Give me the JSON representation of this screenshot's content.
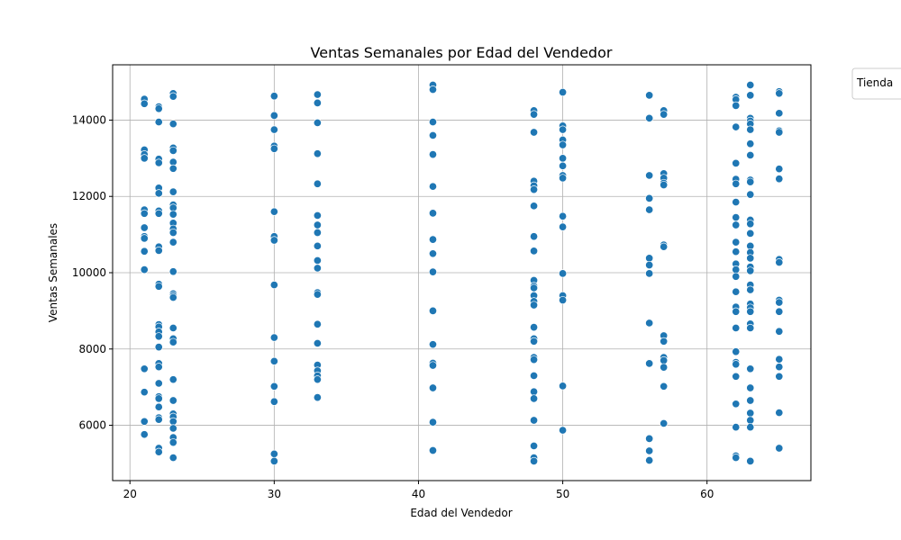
{
  "chart_data": {
    "type": "scatter",
    "title": "Ventas Semanales por Edad del Vendedor",
    "xlabel": "Edad del Vendedor",
    "ylabel": "Ventas Semanales",
    "xlim": [
      18.8,
      67.2
    ],
    "ylim": [
      4550,
      15450
    ],
    "xticks": [
      20,
      30,
      40,
      50,
      60
    ],
    "yticks": [
      6000,
      8000,
      10000,
      12000,
      14000
    ],
    "grid": true,
    "marker_color": "#1f77b4",
    "legend": {
      "title": "Tienda",
      "placement": "outside-top-right"
    },
    "points": [
      [
        21,
        14550
      ],
      [
        21,
        14430
      ],
      [
        21,
        13220
      ],
      [
        21,
        13100
      ],
      [
        21,
        13000
      ],
      [
        21,
        11650
      ],
      [
        21,
        11550
      ],
      [
        21,
        11180
      ],
      [
        21,
        10950
      ],
      [
        21,
        10900
      ],
      [
        21,
        10560
      ],
      [
        21,
        10080
      ],
      [
        21,
        7480
      ],
      [
        21,
        6870
      ],
      [
        21,
        6100
      ],
      [
        21,
        5760
      ],
      [
        22,
        14350
      ],
      [
        22,
        14300
      ],
      [
        22,
        13950
      ],
      [
        22,
        12980
      ],
      [
        22,
        12880
      ],
      [
        22,
        12220
      ],
      [
        22,
        12080
      ],
      [
        22,
        11620
      ],
      [
        22,
        11550
      ],
      [
        22,
        10680
      ],
      [
        22,
        10580
      ],
      [
        22,
        9700
      ],
      [
        22,
        9640
      ],
      [
        22,
        8640
      ],
      [
        22,
        8580
      ],
      [
        22,
        8450
      ],
      [
        22,
        8330
      ],
      [
        22,
        8050
      ],
      [
        22,
        7620
      ],
      [
        22,
        7530
      ],
      [
        22,
        7100
      ],
      [
        22,
        6750
      ],
      [
        22,
        6700
      ],
      [
        22,
        6480
      ],
      [
        22,
        6200
      ],
      [
        22,
        6150
      ],
      [
        22,
        5400
      ],
      [
        22,
        5300
      ],
      [
        23,
        14700
      ],
      [
        23,
        14620
      ],
      [
        23,
        13900
      ],
      [
        23,
        13270
      ],
      [
        23,
        13200
      ],
      [
        23,
        12900
      ],
      [
        23,
        12730
      ],
      [
        23,
        12120
      ],
      [
        23,
        11780
      ],
      [
        23,
        11700
      ],
      [
        23,
        11530
      ],
      [
        23,
        11300
      ],
      [
        23,
        11150
      ],
      [
        23,
        11050
      ],
      [
        23,
        10800
      ],
      [
        23,
        10030
      ],
      [
        23,
        9450
      ],
      [
        23,
        9400
      ],
      [
        23,
        9350
      ],
      [
        23,
        8550
      ],
      [
        23,
        8270
      ],
      [
        23,
        8180
      ],
      [
        23,
        7200
      ],
      [
        23,
        6650
      ],
      [
        23,
        6300
      ],
      [
        23,
        6220
      ],
      [
        23,
        6100
      ],
      [
        23,
        5920
      ],
      [
        23,
        5680
      ],
      [
        23,
        5550
      ],
      [
        23,
        5150
      ],
      [
        30,
        14630
      ],
      [
        30,
        14120
      ],
      [
        30,
        13750
      ],
      [
        30,
        13320
      ],
      [
        30,
        13250
      ],
      [
        30,
        11600
      ],
      [
        30,
        10950
      ],
      [
        30,
        10850
      ],
      [
        30,
        9680
      ],
      [
        30,
        8300
      ],
      [
        30,
        7680
      ],
      [
        30,
        7020
      ],
      [
        30,
        6620
      ],
      [
        30,
        5250
      ],
      [
        30,
        5060
      ],
      [
        33,
        14670
      ],
      [
        33,
        14450
      ],
      [
        33,
        13930
      ],
      [
        33,
        13120
      ],
      [
        33,
        12330
      ],
      [
        33,
        11500
      ],
      [
        33,
        11250
      ],
      [
        33,
        11050
      ],
      [
        33,
        10700
      ],
      [
        33,
        10320
      ],
      [
        33,
        10120
      ],
      [
        33,
        9480
      ],
      [
        33,
        9430
      ],
      [
        33,
        8650
      ],
      [
        33,
        8150
      ],
      [
        33,
        7580
      ],
      [
        33,
        7430
      ],
      [
        33,
        7300
      ],
      [
        33,
        7200
      ],
      [
        33,
        6730
      ],
      [
        41,
        14920
      ],
      [
        41,
        14800
      ],
      [
        41,
        13950
      ],
      [
        41,
        13600
      ],
      [
        41,
        13100
      ],
      [
        41,
        12260
      ],
      [
        41,
        11560
      ],
      [
        41,
        10870
      ],
      [
        41,
        10500
      ],
      [
        41,
        10020
      ],
      [
        41,
        9000
      ],
      [
        41,
        8120
      ],
      [
        41,
        7630
      ],
      [
        41,
        7570
      ],
      [
        41,
        6980
      ],
      [
        41,
        6080
      ],
      [
        41,
        5340
      ],
      [
        48,
        14250
      ],
      [
        48,
        14150
      ],
      [
        48,
        13680
      ],
      [
        48,
        12400
      ],
      [
        48,
        12280
      ],
      [
        48,
        12180
      ],
      [
        48,
        11750
      ],
      [
        48,
        10950
      ],
      [
        48,
        10570
      ],
      [
        48,
        9800
      ],
      [
        48,
        9650
      ],
      [
        48,
        9600
      ],
      [
        48,
        9400
      ],
      [
        48,
        9250
      ],
      [
        48,
        9150
      ],
      [
        48,
        8570
      ],
      [
        48,
        8270
      ],
      [
        48,
        8200
      ],
      [
        48,
        7780
      ],
      [
        48,
        7720
      ],
      [
        48,
        7300
      ],
      [
        48,
        6880
      ],
      [
        48,
        6700
      ],
      [
        48,
        6130
      ],
      [
        48,
        5460
      ],
      [
        48,
        5150
      ],
      [
        48,
        5060
      ],
      [
        50,
        14730
      ],
      [
        50,
        13850
      ],
      [
        50,
        13750
      ],
      [
        50,
        13480
      ],
      [
        50,
        13350
      ],
      [
        50,
        13000
      ],
      [
        50,
        12800
      ],
      [
        50,
        12550
      ],
      [
        50,
        12480
      ],
      [
        50,
        11480
      ],
      [
        50,
        11200
      ],
      [
        50,
        9980
      ],
      [
        50,
        9400
      ],
      [
        50,
        9280
      ],
      [
        50,
        7030
      ],
      [
        50,
        5870
      ],
      [
        56,
        14650
      ],
      [
        56,
        14050
      ],
      [
        56,
        12550
      ],
      [
        56,
        11950
      ],
      [
        56,
        11650
      ],
      [
        56,
        10380
      ],
      [
        56,
        10200
      ],
      [
        56,
        9980
      ],
      [
        56,
        8680
      ],
      [
        56,
        7620
      ],
      [
        56,
        5650
      ],
      [
        56,
        5330
      ],
      [
        56,
        5080
      ],
      [
        57,
        14250
      ],
      [
        57,
        14150
      ],
      [
        57,
        12600
      ],
      [
        57,
        12480
      ],
      [
        57,
        12350
      ],
      [
        57,
        12300
      ],
      [
        57,
        10730
      ],
      [
        57,
        10680
      ],
      [
        57,
        8350
      ],
      [
        57,
        8200
      ],
      [
        57,
        7780
      ],
      [
        57,
        7700
      ],
      [
        57,
        7520
      ],
      [
        57,
        7020
      ],
      [
        57,
        6050
      ],
      [
        62,
        14600
      ],
      [
        62,
        14540
      ],
      [
        62,
        14380
      ],
      [
        62,
        13820
      ],
      [
        62,
        12870
      ],
      [
        62,
        12450
      ],
      [
        62,
        12330
      ],
      [
        62,
        11850
      ],
      [
        62,
        11450
      ],
      [
        62,
        11250
      ],
      [
        62,
        10800
      ],
      [
        62,
        10550
      ],
      [
        62,
        10230
      ],
      [
        62,
        10080
      ],
      [
        62,
        9900
      ],
      [
        62,
        9500
      ],
      [
        62,
        9100
      ],
      [
        62,
        8980
      ],
      [
        62,
        8550
      ],
      [
        62,
        7930
      ],
      [
        62,
        7650
      ],
      [
        62,
        7600
      ],
      [
        62,
        7280
      ],
      [
        62,
        6560
      ],
      [
        62,
        5950
      ],
      [
        62,
        5200
      ],
      [
        62,
        5150
      ],
      [
        63,
        14920
      ],
      [
        63,
        14650
      ],
      [
        63,
        14050
      ],
      [
        63,
        13980
      ],
      [
        63,
        13900
      ],
      [
        63,
        13750
      ],
      [
        63,
        13380
      ],
      [
        63,
        13080
      ],
      [
        63,
        12430
      ],
      [
        63,
        12380
      ],
      [
        63,
        12050
      ],
      [
        63,
        11380
      ],
      [
        63,
        11280
      ],
      [
        63,
        11030
      ],
      [
        63,
        10700
      ],
      [
        63,
        10530
      ],
      [
        63,
        10380
      ],
      [
        63,
        10150
      ],
      [
        63,
        10050
      ],
      [
        63,
        9680
      ],
      [
        63,
        9550
      ],
      [
        63,
        9180
      ],
      [
        63,
        9080
      ],
      [
        63,
        8980
      ],
      [
        63,
        8660
      ],
      [
        63,
        8550
      ],
      [
        63,
        7480
      ],
      [
        63,
        6980
      ],
      [
        63,
        6650
      ],
      [
        63,
        6320
      ],
      [
        63,
        6130
      ],
      [
        63,
        5950
      ],
      [
        63,
        5060
      ],
      [
        65,
        14750
      ],
      [
        65,
        14700
      ],
      [
        65,
        14180
      ],
      [
        65,
        13720
      ],
      [
        65,
        13680
      ],
      [
        65,
        12720
      ],
      [
        65,
        12460
      ],
      [
        65,
        10350
      ],
      [
        65,
        10270
      ],
      [
        65,
        9280
      ],
      [
        65,
        9220
      ],
      [
        65,
        8980
      ],
      [
        65,
        8460
      ],
      [
        65,
        7730
      ],
      [
        65,
        7530
      ],
      [
        65,
        7280
      ],
      [
        65,
        6330
      ],
      [
        65,
        5400
      ]
    ]
  }
}
